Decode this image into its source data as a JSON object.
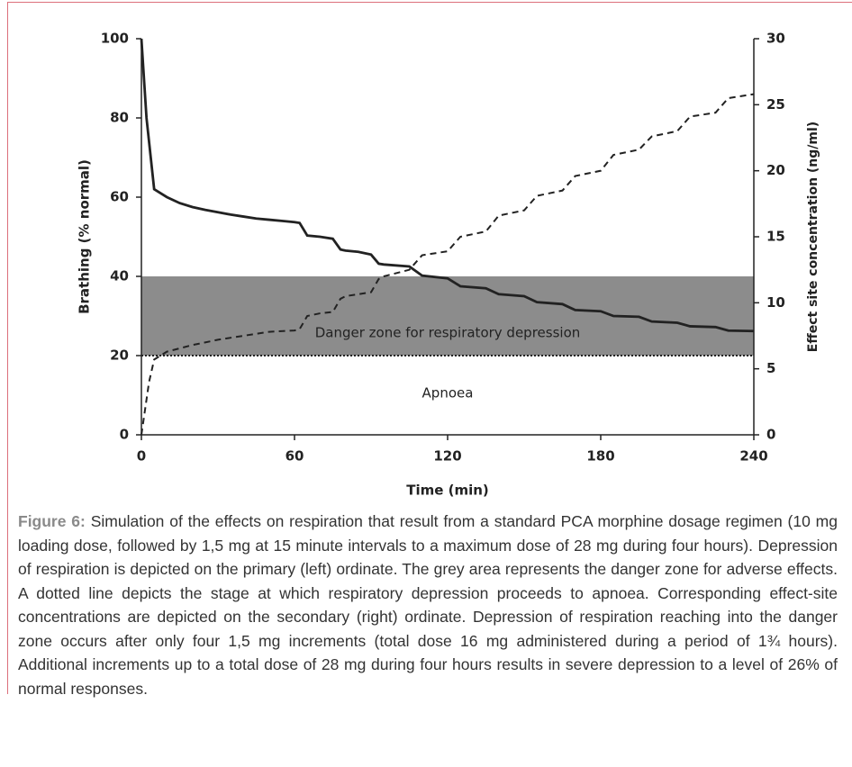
{
  "chart_data": {
    "type": "line",
    "x_label": "Time (min)",
    "y_label": "Brathing (% normal)",
    "y2_label": "Effect site concentration (ng/ml)",
    "xlim": [
      0,
      240
    ],
    "xticks": [
      0,
      60,
      120,
      180,
      240
    ],
    "ylim": [
      0,
      100
    ],
    "yticks": [
      0,
      20,
      40,
      60,
      80,
      100
    ],
    "y2lim": [
      0,
      30
    ],
    "y2ticks": [
      0,
      5,
      10,
      15,
      20,
      25,
      30
    ],
    "danger_zone": {
      "from": 20,
      "to": 40,
      "color": "#8c8c8c",
      "label": "Danger zone for respiratory depression"
    },
    "apnoea": {
      "value": 20,
      "label": "Apnoea"
    },
    "series": [
      {
        "name": "Breathing",
        "color": "#222222",
        "dash": "solid",
        "x": [
          0,
          2,
          5,
          10,
          15,
          20,
          25,
          30,
          35,
          40,
          45,
          50,
          55,
          60,
          62,
          65,
          70,
          75,
          78,
          80,
          85,
          90,
          93,
          95,
          105,
          110,
          120,
          125,
          135,
          140,
          150,
          155,
          165,
          170,
          180,
          185,
          195,
          200,
          210,
          215,
          225,
          230,
          240
        ],
        "values": [
          100,
          80,
          62,
          60,
          58.5,
          57.5,
          56.8,
          56.2,
          55.6,
          55.1,
          54.6,
          54.3,
          54,
          53.7,
          53.5,
          50.3,
          50,
          49.5,
          46.8,
          46.5,
          46.2,
          45.5,
          43.2,
          43,
          42.5,
          40.2,
          39.5,
          37.5,
          37,
          35.5,
          35,
          33.5,
          33,
          31.5,
          31.2,
          30,
          29.8,
          28.6,
          28.3,
          27.4,
          27.2,
          26.3,
          26.2
        ]
      },
      {
        "name": "Effect site concentration",
        "color": "#222222",
        "dash": "dashed",
        "axis": "y2",
        "x": [
          0,
          3,
          5,
          10,
          20,
          30,
          40,
          50,
          60,
          62,
          65,
          70,
          75,
          78,
          80,
          90,
          93,
          95,
          105,
          110,
          120,
          125,
          135,
          140,
          150,
          155,
          165,
          170,
          180,
          185,
          195,
          200,
          210,
          215,
          225,
          230,
          240
        ],
        "values": [
          0,
          4,
          5.7,
          6.3,
          6.8,
          7.2,
          7.5,
          7.8,
          7.9,
          8,
          9,
          9.2,
          9.3,
          10.3,
          10.5,
          10.8,
          11.8,
          12,
          12.5,
          13.6,
          13.9,
          15,
          15.4,
          16.6,
          17,
          18.1,
          18.5,
          19.6,
          20,
          21.2,
          21.6,
          22.6,
          23,
          24.1,
          24.4,
          25.5,
          25.8
        ]
      }
    ]
  },
  "caption": {
    "label": "Figure 6:",
    "text": "Simulation of the effects on respiration that result from a standard PCA morphine dosage regimen (10 mg loading dose, followed by 1,5 mg at 15 minute intervals to a maximum dose of 28 mg during four hours). Depression of respiration is depicted on the primary (left) ordinate. The grey area represents the danger zone for adverse effects.  A dotted line depicts the stage at which respiratory depression proceeds to apnoea. Corresponding effect-site concentrations are depicted on the secondary (right) ordinate. Depression of respiration reaching into the danger zone occurs after only four 1,5 mg increments (total dose 16 mg administered during a period of 1¾ hours). Additional increments up to a total dose of 28 mg during four hours results in severe depression to a level of 26% of normal responses."
  }
}
